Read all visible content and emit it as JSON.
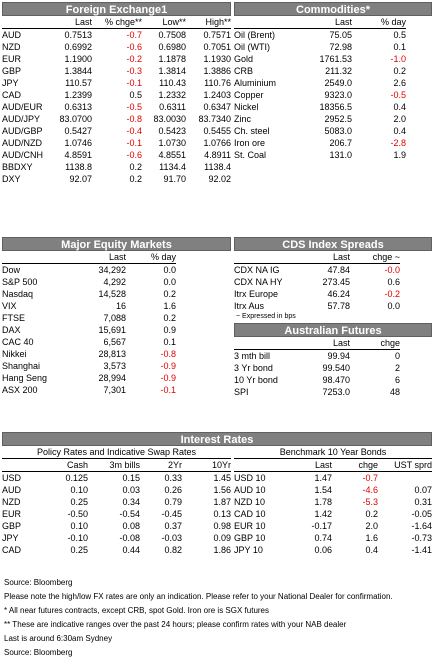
{
  "fx": {
    "title": "Foreign Exchange1",
    "headers": [
      "",
      "Last",
      "% chge**",
      "Low**",
      "High**"
    ],
    "rows": [
      [
        "AUD",
        "0.7513",
        "-0.7",
        "0.7508",
        "0.7571"
      ],
      [
        "NZD",
        "0.6992",
        "-0.6",
        "0.6980",
        "0.7051"
      ],
      [
        "EUR",
        "1.1900",
        "-0.2",
        "1.1878",
        "1.1930"
      ],
      [
        "GBP",
        "1.3844",
        "-0.3",
        "1.3814",
        "1.3886"
      ],
      [
        "JPY",
        "110.57",
        "-0.1",
        "110.43",
        "110.76"
      ],
      [
        "CAD",
        "1.2399",
        "0.5",
        "1.2332",
        "1.2403"
      ],
      [
        "AUD/EUR",
        "0.6313",
        "-0.5",
        "0.6311",
        "0.6347"
      ],
      [
        "AUD/JPY",
        "83.0700",
        "-0.8",
        "83.0030",
        "83.7340"
      ],
      [
        "AUD/GBP",
        "0.5427",
        "-0.4",
        "0.5423",
        "0.5455"
      ],
      [
        "AUD/NZD",
        "1.0746",
        "-0.1",
        "1.0730",
        "1.0766"
      ],
      [
        "AUD/CNH",
        "4.8591",
        "-0.6",
        "4.8551",
        "4.8911"
      ],
      [
        "BBDXY",
        "1138.8",
        "0.2",
        "1134.4",
        "1138.4"
      ],
      [
        "DXY",
        "92.07",
        "0.2",
        "91.70",
        "92.02"
      ]
    ]
  },
  "commodities": {
    "title": "Commodities*",
    "headers": [
      "",
      "Last",
      "% day"
    ],
    "rows": [
      [
        "Oil (Brent)",
        "75.05",
        "0.5"
      ],
      [
        "Oil (WTI)",
        "72.98",
        "0.1"
      ],
      [
        "Gold",
        "1761.53",
        "-1.0"
      ],
      [
        "CRB",
        "211.32",
        "0.2"
      ],
      [
        "Aluminium",
        "2549.0",
        "2.6"
      ],
      [
        "Copper",
        "9323.0",
        "-0.5"
      ],
      [
        "Nickel",
        "18356.5",
        "0.4"
      ],
      [
        "Zinc",
        "2952.5",
        "2.0"
      ],
      [
        "Ch. steel",
        "5083.0",
        "0.4"
      ],
      [
        "Iron ore",
        "206.7",
        "-2.8"
      ],
      [
        "St. Coal",
        "131.0",
        "1.9"
      ]
    ]
  },
  "equity": {
    "title": "Major Equity Markets",
    "headers": [
      "",
      "Last",
      "% day"
    ],
    "rows": [
      [
        "Dow",
        "34,292",
        "0.0"
      ],
      [
        "S&P 500",
        "4,292",
        "0.0"
      ],
      [
        "Nasdaq",
        "14,528",
        "0.2"
      ],
      [
        "VIX",
        "16",
        "1.6"
      ],
      [
        "FTSE",
        "7,088",
        "0.2"
      ],
      [
        "DAX",
        "15,691",
        "0.9"
      ],
      [
        "CAC 40",
        "6,567",
        "0.1"
      ],
      [
        "Nikkei",
        "28,813",
        "-0.8"
      ],
      [
        "Shanghai",
        "3,573",
        "-0.9"
      ],
      [
        "Hang Seng",
        "28,994",
        "-0.9"
      ],
      [
        "ASX 200",
        "7,301",
        "-0.1"
      ]
    ]
  },
  "cds": {
    "title": "CDS Index Spreads",
    "headers": [
      "",
      "Last",
      "chge ~"
    ],
    "rows": [
      [
        "CDX NA IG",
        "47.84",
        "-0.0"
      ],
      [
        "CDX NA HY",
        "273.45",
        "0.6"
      ],
      [
        "Itrx Europe",
        "46.24",
        "-0.2"
      ],
      [
        "Itrx Aus",
        "57.78",
        "0.0"
      ]
    ],
    "footnote": "~ Expressed in bps"
  },
  "futures": {
    "title": "Australian Futures",
    "headers": [
      "",
      "Last",
      "chge"
    ],
    "rows": [
      [
        "3 mth bill",
        "99.94",
        "0"
      ],
      [
        "3 Yr bond",
        "99.540",
        "2"
      ],
      [
        "10 Yr bond",
        "98.470",
        "6"
      ],
      [
        "SPI",
        "7253.0",
        "48"
      ]
    ]
  },
  "rates": {
    "title": "Interest Rates",
    "policy_title": "Policy Rates and Indicative Swap Rates",
    "policy_headers": [
      "",
      "Cash",
      "3m bills",
      "2Yr",
      "10Yr"
    ],
    "policy_rows": [
      [
        "USD",
        "0.125",
        "0.15",
        "0.33",
        "1.45"
      ],
      [
        "AUD",
        "0.10",
        "0.03",
        "0.26",
        "1.56"
      ],
      [
        "NZD",
        "0.25",
        "0.34",
        "0.79",
        "1.87"
      ],
      [
        "EUR",
        "-0.50",
        "-0.54",
        "-0.45",
        "0.13"
      ],
      [
        "GBP",
        "0.10",
        "0.08",
        "0.37",
        "0.98"
      ],
      [
        "JPY",
        "-0.10",
        "-0.08",
        "-0.03",
        "0.09"
      ],
      [
        "CAD",
        "0.25",
        "0.44",
        "0.82",
        "1.86"
      ]
    ],
    "bond_title": "Benchmark 10 Year Bonds",
    "bond_headers": [
      "",
      "Last",
      "chge",
      "UST sprd"
    ],
    "bond_rows": [
      [
        "USD 10",
        "1.47",
        "-0.7",
        ""
      ],
      [
        "AUD 10",
        "1.54",
        "-4.6",
        "0.07"
      ],
      [
        "NZD 10",
        "1.78",
        "-5.3",
        "0.31"
      ],
      [
        "CAD 10",
        "1.42",
        "0.2",
        "-0.05"
      ],
      [
        "EUR 10",
        "-0.17",
        "2.0",
        "-1.64"
      ],
      [
        "GBP 10",
        "0.74",
        "1.6",
        "-0.73"
      ],
      [
        "JPY 10",
        "0.06",
        "0.4",
        "-1.41"
      ]
    ]
  },
  "notes": {
    "source1": "Source: Bloomberg",
    "disclaimer": "Please note the high/low FX rates are only an indication. Please refer to your National Dealer for confirmation.",
    "futures_note": "* All near futures contracts, except CRB, spot Gold.  Iron ore is SGX futures",
    "range_note": "** These are indicative ranges over the past 24 hours; please confirm rates with your NAB dealer",
    "time_note": "Last is around 6:30am Sydney",
    "source2": "Source: Bloomberg"
  },
  "colors": {
    "header_bg": "#808080",
    "negative": "#e00000"
  }
}
